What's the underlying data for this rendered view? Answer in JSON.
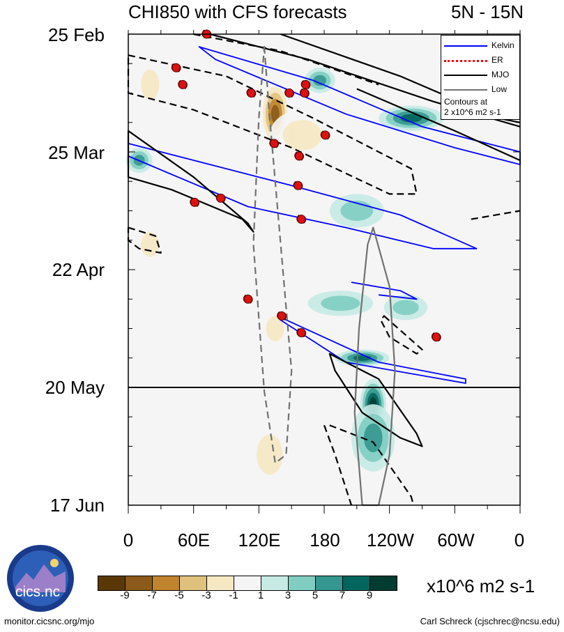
{
  "title": "CHI850 with CFS forecasts",
  "region": "5N - 15N",
  "chart_data": {
    "type": "heatmap",
    "xlabel": "",
    "ylabel": "",
    "x_ticks": [
      "0",
      "60E",
      "120E",
      "180",
      "120W",
      "60W",
      "0"
    ],
    "x_range_deg": [
      0,
      360
    ],
    "y_ticks": [
      "25 Feb",
      "25 Mar",
      "22 Apr",
      "20 May",
      "17 Jun"
    ],
    "y_range_days": [
      0,
      112
    ],
    "forecast_start": "20 May",
    "colorbar": {
      "colors": [
        "#5a3806",
        "#8b5a1a",
        "#c0842f",
        "#dfc27d",
        "#f6e8c3",
        "#f5f5f5",
        "#c7eae5",
        "#80cdc1",
        "#35978f",
        "#01665e",
        "#003c30"
      ],
      "labels": [
        "-9",
        "-7",
        "-5",
        "-3",
        "-1",
        "1",
        "3",
        "5",
        "7",
        "9"
      ],
      "units": "x10^6 m2 s-1"
    },
    "anomalies": [
      {
        "lon": 135,
        "day": 19,
        "value": -9,
        "rx": 14,
        "ry": 8
      },
      {
        "lon": 150,
        "day": 24,
        "value": -7,
        "rx": 6,
        "ry": 5
      },
      {
        "lon": 160,
        "day": 24,
        "value": -3,
        "rx": 30,
        "ry": 6
      },
      {
        "lon": 20,
        "day": 12,
        "value": -3,
        "rx": 14,
        "ry": 6
      },
      {
        "lon": 20,
        "day": 50,
        "value": -3,
        "rx": 14,
        "ry": 5
      },
      {
        "lon": 135,
        "day": 70,
        "value": -3,
        "rx": 14,
        "ry": 5
      },
      {
        "lon": 130,
        "day": 100,
        "value": -3,
        "rx": 20,
        "ry": 8
      },
      {
        "lon": 176,
        "day": 11,
        "value": 5,
        "rx": 14,
        "ry": 3
      },
      {
        "lon": 260,
        "day": 20,
        "value": 7,
        "rx": 30,
        "ry": 3
      },
      {
        "lon": 10,
        "day": 30,
        "value": 5,
        "rx": 12,
        "ry": 3
      },
      {
        "lon": 210,
        "day": 42,
        "value": 3,
        "rx": 25,
        "ry": 4
      },
      {
        "lon": 215,
        "day": 77,
        "value": 7,
        "rx": 25,
        "ry": 2
      },
      {
        "lon": 225,
        "day": 88,
        "value": 9,
        "rx": 12,
        "ry": 6
      },
      {
        "lon": 225,
        "day": 96,
        "value": 5,
        "rx": 20,
        "ry": 8
      },
      {
        "lon": 195,
        "day": 64,
        "value": 3,
        "rx": 30,
        "ry": 3
      },
      {
        "lon": 255,
        "day": 65,
        "value": 3,
        "rx": 20,
        "ry": 3
      }
    ],
    "series": [
      {
        "name": "Kelvin",
        "color": "#0000ff",
        "contours": [
          [
            [
              65,
              3
            ],
            [
              170,
              11
            ],
            [
              270,
              22
            ],
            [
              360,
              28
            ],
            [
              360,
              31
            ],
            [
              300,
              27
            ],
            [
              200,
              19
            ],
            [
              80,
              6
            ]
          ],
          [
            [
              0,
              26
            ],
            [
              150,
              36
            ],
            [
              250,
              43
            ],
            [
              320,
              51
            ],
            [
              280,
              51
            ],
            [
              200,
              46
            ],
            [
              110,
              41
            ],
            [
              0,
              29
            ]
          ],
          [
            [
              205,
              59
            ],
            [
              250,
              61
            ],
            [
              265,
              63
            ],
            [
              230,
              62
            ]
          ],
          [
            [
              137,
              67
            ],
            [
              230,
              78
            ],
            [
              310,
              82
            ],
            [
              310,
              83
            ],
            [
              200,
              78
            ],
            [
              140,
              68
            ]
          ]
        ]
      },
      {
        "name": "ER",
        "color": "#ff0000",
        "contours": []
      },
      {
        "name": "MJO",
        "color": "#000000",
        "contours": [
          {
            "dashed": false,
            "pts": [
              [
                75,
                0
              ],
              [
                165,
                6
              ],
              [
                280,
                16
              ],
              [
                360,
                22
              ]
            ]
          },
          {
            "dashed": false,
            "pts": [
              [
                140,
                0
              ],
              [
                250,
                10
              ],
              [
                340,
                20
              ],
              [
                360,
                21
              ]
            ]
          },
          {
            "dashed": false,
            "pts": [
              [
                210,
                13
              ],
              [
                300,
                23
              ],
              [
                360,
                30
              ]
            ]
          },
          {
            "dashed": false,
            "pts": [
              [
                0,
                23
              ],
              [
                60,
                34
              ],
              [
                110,
                45
              ],
              [
                115,
                47
              ],
              [
                105,
                44
              ],
              [
                40,
                37
              ],
              [
                0,
                34
              ]
            ]
          },
          {
            "dashed": true,
            "pts": [
              [
                0,
                5
              ],
              [
                90,
                10
              ],
              [
                170,
                20
              ],
              [
                260,
                32
              ],
              [
                265,
                38
              ],
              [
                240,
                38
              ],
              [
                150,
                27
              ],
              [
                60,
                18
              ],
              [
                0,
                14
              ]
            ]
          },
          {
            "dashed": true,
            "pts": [
              [
                60,
                0
              ],
              [
                140,
                4
              ],
              [
                230,
                12
              ]
            ]
          },
          {
            "dashed": true,
            "pts": [
              [
                0,
                46
              ],
              [
                25,
                48
              ],
              [
                30,
                52
              ],
              [
                10,
                51
              ],
              [
                0,
                49
              ]
            ]
          },
          {
            "dashed": true,
            "pts": [
              [
                315,
                44
              ],
              [
                360,
                42
              ]
            ]
          },
          {
            "dashed": true,
            "pts": [
              [
                235,
                67
              ],
              [
                270,
                75
              ],
              [
                265,
                76
              ],
              [
                240,
                72
              ],
              [
                232,
                68
              ]
            ]
          },
          {
            "dashed": false,
            "pts": [
              [
                185,
                76
              ],
              [
                230,
                82
              ],
              [
                265,
                95
              ],
              [
                270,
                98
              ],
              [
                250,
                96
              ],
              [
                215,
                90
              ],
              [
                190,
                80
              ]
            ]
          },
          {
            "dashed": true,
            "pts": [
              [
                185,
                93
              ],
              [
                225,
                97
              ],
              [
                260,
                110
              ],
              [
                262,
                112
              ]
            ]
          },
          {
            "dashed": true,
            "pts": [
              [
                180,
                93
              ],
              [
                190,
                100
              ],
              [
                205,
                112
              ]
            ]
          }
        ]
      },
      {
        "name": "Low",
        "color": "#707070",
        "contours": [
          {
            "dashed": true,
            "pts": [
              [
                125,
                3
              ],
              [
                130,
                20
              ],
              [
                140,
                50
              ],
              [
                150,
                80
              ],
              [
                145,
                100
              ],
              [
                135,
                102
              ],
              [
                125,
                85
              ],
              [
                115,
                50
              ],
              [
                120,
                20
              ]
            ]
          },
          {
            "dashed": false,
            "pts": [
              [
                225,
                46
              ],
              [
                240,
                60
              ],
              [
                245,
                80
              ],
              [
                240,
                100
              ],
              [
                230,
                112
              ],
              [
                215,
                112
              ],
              [
                208,
                90
              ],
              [
                212,
                70
              ],
              [
                220,
                50
              ]
            ]
          }
        ]
      }
    ],
    "storms": [
      {
        "lon": 72,
        "day": 0
      },
      {
        "lon": 44,
        "day": 8
      },
      {
        "lon": 50,
        "day": 12
      },
      {
        "lon": 113,
        "day": 14
      },
      {
        "lon": 148,
        "day": 14
      },
      {
        "lon": 163,
        "day": 12
      },
      {
        "lon": 162,
        "day": 14
      },
      {
        "lon": 181,
        "day": 24
      },
      {
        "lon": 134,
        "day": 26
      },
      {
        "lon": 157,
        "day": 29
      },
      {
        "lon": 156,
        "day": 36
      },
      {
        "lon": 61,
        "day": 40
      },
      {
        "lon": 85,
        "day": 39
      },
      {
        "lon": 159,
        "day": 44
      },
      {
        "lon": 110,
        "day": 63
      },
      {
        "lon": 141,
        "day": 67
      },
      {
        "lon": 159,
        "day": 71
      },
      {
        "lon": 283,
        "day": 72
      }
    ]
  },
  "legend": {
    "items": [
      {
        "label": "Kelvin",
        "color": "#0000ff"
      },
      {
        "label": "ER",
        "color": "#ff0000"
      },
      {
        "label": "MJO",
        "color": "#000000"
      },
      {
        "label": "Low",
        "color": "#707070"
      }
    ],
    "note_line1": "Contours at",
    "note_line2": "2 x10^6 m2 s-1"
  },
  "logo_text": "cics.nc",
  "footer": {
    "left": "monitor.cicsnc.org/mjo",
    "right": "Carl Schreck (cjschrec@ncsu.edu)"
  }
}
